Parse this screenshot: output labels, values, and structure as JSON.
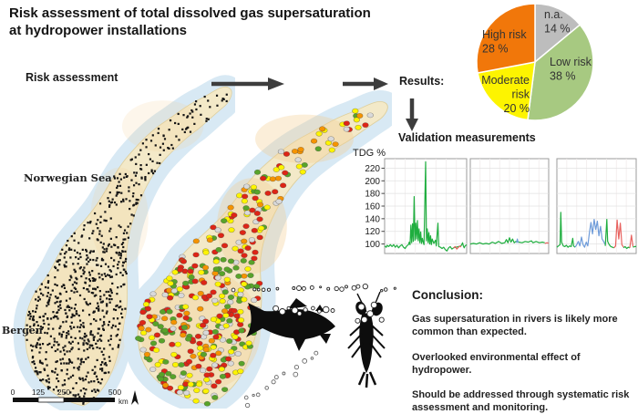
{
  "title": {
    "line1": "Risk assessment of total dissolved gas supersaturation",
    "line2": "at hydropower installations"
  },
  "maps": {
    "stage_label": "Risk assessment",
    "norwegian_sea_label": "Norwegian Sea",
    "bergen_label": "Bergen",
    "scale_bar": {
      "tick_labels": [
        "0",
        "125",
        "250",
        "500"
      ],
      "unit": "km"
    },
    "map1_dots": {
      "meaning": "assessed hydropower installations",
      "color": "#141414",
      "count": 800
    },
    "map2_dots": {
      "meaning": "risk classification per installation",
      "count": 430,
      "palette": [
        {
          "color": "#dd2516",
          "weight": 0.27,
          "meaning": "high risk"
        },
        {
          "color": "#fdf400",
          "weight": 0.25,
          "weight_note": "",
          "meaning": "moderate risk"
        },
        {
          "color": "#58a32a",
          "weight": 0.27,
          "meaning": "low risk"
        },
        {
          "color": "#f59300",
          "weight": 0.11,
          "meaning": "elevated risk"
        },
        {
          "color": "#d9d9d9",
          "weight": 0.1,
          "meaning": "n.a."
        }
      ]
    }
  },
  "flow": {
    "results_label": "Results:"
  },
  "conclusion": {
    "heading": "Conclusion:",
    "paragraphs": [
      "Gas supersaturation in rivers is likely more common than expected.",
      "Overlooked environmental effect of hydropower.",
      "Should be addressed through systematic risk assessment and monitoring."
    ]
  },
  "chart_data": [
    {
      "type": "pie",
      "title": "Share of installations per risk class",
      "direction": "clockwise",
      "start_angle_deg": 0,
      "slices": [
        {
          "label": "n.a.",
          "label_lines": [
            "n.a."
          ],
          "pct": 14,
          "pct_label": "14 %",
          "color": "#bdbdbd"
        },
        {
          "label": "Low risk",
          "label_lines": [
            "Low risk"
          ],
          "pct": 38,
          "pct_label": "38 %",
          "color": "#a7c981"
        },
        {
          "label": "Moderate risk",
          "label_lines": [
            "Moderate",
            "risk"
          ],
          "pct": 20,
          "pct_label": "20 %",
          "color": "#fdf400"
        },
        {
          "label": "High risk",
          "label_lines": [
            "High risk"
          ],
          "pct": 28,
          "pct_label": "28 %",
          "color": "#f1770a"
        }
      ]
    },
    {
      "type": "line",
      "title": "Validation measurements",
      "ylabel": "TDG %",
      "y_ticks": [
        100,
        120,
        140,
        160,
        180,
        200,
        220
      ],
      "y_domain": [
        85,
        235
      ],
      "grid": true,
      "panels": [
        {
          "segments": [
            {
              "color": "#1fae3f",
              "points": [
                [
                  0,
                  97
                ],
                [
                  2,
                  95
                ],
                [
                  3,
                  98
                ],
                [
                  5,
                  96
                ],
                [
                  7,
                  99
                ],
                [
                  9,
                  96
                ],
                [
                  11,
                  99
                ],
                [
                  13,
                  95
                ],
                [
                  15,
                  98
                ],
                [
                  17,
                  94
                ],
                [
                  19,
                  97
                ],
                [
                  21,
                  99
                ],
                [
                  23,
                  95
                ],
                [
                  25,
                  93
                ],
                [
                  27,
                  97
                ],
                [
                  29,
                  99
                ],
                [
                  30,
                  103
                ],
                [
                  31,
                  99
                ],
                [
                  32,
                  130
                ],
                [
                  33,
                  102
                ],
                [
                  34,
                  132
                ],
                [
                  35,
                  104
                ],
                [
                  36,
                  175
                ],
                [
                  37,
                  106
                ],
                [
                  38,
                  133
                ],
                [
                  39,
                  108
                ],
                [
                  40,
                  137
                ],
                [
                  41,
                  105
                ],
                [
                  42,
                  124
                ],
                [
                  43,
                  102
                ],
                [
                  44,
                  119
                ],
                [
                  45,
                  101
                ],
                [
                  46,
                  109
                ],
                [
                  47,
                  103
                ],
                [
                  48,
                  99
                ],
                [
                  50,
                  230
                ],
                [
                  51,
                  105
                ],
                [
                  52,
                  124
                ],
                [
                  53,
                  102
                ],
                [
                  54,
                  118
                ],
                [
                  55,
                  100
                ],
                [
                  56,
                  113
                ],
                [
                  57,
                  99
                ],
                [
                  58,
                  108
                ],
                [
                  60,
                  101
                ],
                [
                  62,
                  106
                ],
                [
                  63,
                  97
                ],
                [
                  65,
                  133
                ],
                [
                  66,
                  96
                ],
                [
                  68,
                  95
                ],
                [
                  70,
                  93
                ],
                [
                  72,
                  95
                ],
                [
                  74,
                  91
                ],
                [
                  76,
                  89
                ],
                [
                  78,
                  94
                ],
                [
                  80,
                  96
                ],
                [
                  82,
                  92
                ],
                [
                  84,
                  94
                ],
                [
                  93,
                  97
                ],
                [
                  94,
                  99
                ],
                [
                  95,
                  102
                ],
                [
                  96,
                  97
                ],
                [
                  97,
                  94
                ],
                [
                  98,
                  97
                ],
                [
                  100,
                  99
                ]
              ]
            },
            {
              "color": "#e8625f",
              "points": [
                [
                  84,
                  94
                ],
                [
                  86,
                  96
                ],
                [
                  88,
                  92
                ],
                [
                  90,
                  95
                ],
                [
                  92,
                  97
                ],
                [
                  93,
                  95
                ]
              ]
            }
          ]
        },
        {
          "segments": [
            {
              "color": "#1fae3f",
              "points": [
                [
                  0,
                  100
                ],
                [
                  4,
                  101
                ],
                [
                  8,
                  100
                ],
                [
                  12,
                  102
                ],
                [
                  16,
                  100
                ],
                [
                  20,
                  101
                ],
                [
                  24,
                  100
                ],
                [
                  28,
                  103
                ],
                [
                  32,
                  101
                ],
                [
                  36,
                  104
                ],
                [
                  40,
                  101
                ],
                [
                  44,
                  102
                ],
                [
                  46,
                  107
                ],
                [
                  48,
                  102
                ],
                [
                  50,
                  110
                ],
                [
                  52,
                  103
                ],
                [
                  54,
                  108
                ],
                [
                  56,
                  102
                ],
                [
                  58,
                  104
                ],
                [
                  62,
                  103
                ],
                [
                  66,
                  102
                ],
                [
                  70,
                  104
                ],
                [
                  74,
                  103
                ],
                [
                  78,
                  105
                ],
                [
                  80,
                  102
                ],
                [
                  84,
                  104
                ],
                [
                  88,
                  102
                ],
                [
                  92,
                  103
                ],
                [
                  95,
                  102
                ]
              ]
            },
            {
              "color": "#6e9bd9",
              "points": [
                [
                  59,
                  102
                ],
                [
                  60,
                  108
                ],
                [
                  61,
                  102
                ]
              ]
            },
            {
              "color": "#e8625f",
              "points": [
                [
                  95,
                  101
                ],
                [
                  98,
                  102
                ],
                [
                  100,
                  101
                ]
              ]
            }
          ]
        },
        {
          "segments": [
            {
              "color": "#1fae3f",
              "points": [
                [
                  0,
                  95
                ],
                [
                  2,
                  97
                ],
                [
                  4,
                  99
                ],
                [
                  5,
                  150
                ],
                [
                  6,
                  103
                ],
                [
                  8,
                  97
                ],
                [
                  10,
                  96
                ],
                [
                  12,
                  98
                ],
                [
                  14,
                  95
                ],
                [
                  16,
                  97
                ],
                [
                  18,
                  96
                ],
                [
                  20,
                  109
                ],
                [
                  21,
                  97
                ],
                [
                  23,
                  95
                ]
              ]
            },
            {
              "color": "#6e9bd9",
              "points": [
                [
                  23,
                  95
                ],
                [
                  25,
                  99
                ],
                [
                  27,
                  104
                ],
                [
                  29,
                  97
                ],
                [
                  31,
                  111
                ],
                [
                  33,
                  99
                ],
                [
                  35,
                  95
                ],
                [
                  37,
                  103
                ],
                [
                  39,
                  97
                ],
                [
                  41,
                  118
                ],
                [
                  43,
                  134
                ],
                [
                  45,
                  116
                ],
                [
                  47,
                  139
                ],
                [
                  49,
                  123
                ],
                [
                  51,
                  136
                ],
                [
                  53,
                  113
                ],
                [
                  55,
                  128
                ],
                [
                  57,
                  108
                ],
                [
                  59,
                  104
                ],
                [
                  61,
                  99
                ]
              ]
            },
            {
              "color": "#1fae3f",
              "points": [
                [
                  61,
                  97
                ],
                [
                  63,
                  139
                ],
                [
                  64,
                  104
                ],
                [
                  66,
                  99
                ],
                [
                  68,
                  96
                ],
                [
                  70,
                  95
                ],
                [
                  72,
                  94
                ]
              ]
            },
            {
              "color": "#e8625f",
              "points": [
                [
                  72,
                  94
                ],
                [
                  74,
                  97
                ],
                [
                  76,
                  138
                ],
                [
                  78,
                  108
                ],
                [
                  80,
                  133
                ],
                [
                  82,
                  99
                ],
                [
                  84,
                  95
                ]
              ]
            },
            {
              "color": "#1fae3f",
              "points": [
                [
                  84,
                  94
                ],
                [
                  86,
                  96
                ],
                [
                  88,
                  93
                ],
                [
                  90,
                  95
                ],
                [
                  92,
                  94
                ]
              ]
            },
            {
              "color": "#e8625f",
              "points": [
                [
                  92,
                  94
                ],
                [
                  94,
                  114
                ],
                [
                  96,
                  96
                ]
              ]
            },
            {
              "color": "#1fae3f",
              "points": [
                [
                  96,
                  95
                ],
                [
                  98,
                  96
                ],
                [
                  100,
                  96
                ]
              ]
            }
          ]
        }
      ]
    }
  ]
}
